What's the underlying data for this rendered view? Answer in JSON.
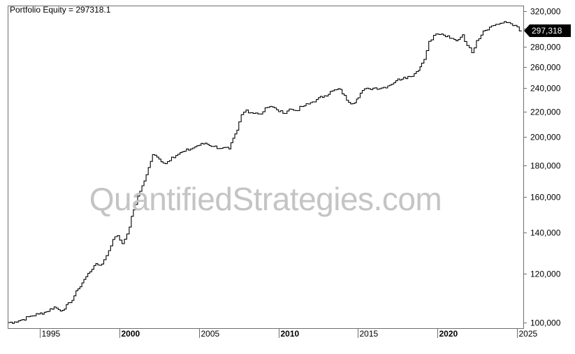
{
  "header": {
    "label": "Portfolio Equity = 297318.1"
  },
  "watermark": {
    "text": "QuantifiedStrategies.com"
  },
  "colors": {
    "line": "#000000",
    "frame": "#6e6e6e",
    "badge_bg": "#000000",
    "badge_text": "#ffffff",
    "watermark": "#c4c4c4"
  },
  "chart_data": {
    "type": "line",
    "title": "",
    "xlabel": "",
    "ylabel": "",
    "y_scale": "log",
    "ylim": [
      98000,
      326000
    ],
    "xlim": [
      1993.0,
      2025.4
    ],
    "grid": false,
    "legend": "none",
    "series": [
      {
        "name": "Portfolio Equity",
        "x": [
          1993.0,
          1993.5,
          1994.0,
          1994.5,
          1995.0,
          1995.5,
          1996.0,
          1996.4,
          1997.0,
          1997.5,
          1998.0,
          1998.5,
          1999.0,
          1999.3,
          1999.7,
          2000.0,
          2000.3,
          2000.6,
          2001.0,
          2001.4,
          2001.8,
          2002.2,
          2002.6,
          2003.0,
          2003.4,
          2003.8,
          2004.2,
          2004.6,
          2005.0,
          2005.5,
          2006.0,
          2006.5,
          2007.0,
          2007.5,
          2007.8,
          2008.1,
          2008.4,
          2008.7,
          2009.0,
          2009.3,
          2009.6,
          2010.0,
          2010.4,
          2010.8,
          2011.2,
          2011.6,
          2012.0,
          2012.5,
          2013.0,
          2013.5,
          2014.0,
          2014.4,
          2014.8,
          2015.0,
          2015.4,
          2015.8,
          2016.2,
          2016.6,
          2017.0,
          2017.5,
          2018.0,
          2018.4,
          2018.8,
          2019.0,
          2019.3,
          2019.6,
          2019.9,
          2020.1,
          2020.5,
          2020.9,
          2021.3,
          2021.7,
          2022.0,
          2022.3,
          2022.6,
          2023.0,
          2023.4,
          2023.8,
          2024.2,
          2024.6,
          2025.0,
          2025.3
        ],
        "y": [
          100000,
          100300,
          101200,
          102500,
          103300,
          104200,
          106100,
          104500,
          107800,
          113500,
          118800,
          123800,
          124500,
          128500,
          136500,
          138400,
          134400,
          139300,
          152400,
          163400,
          173800,
          187400,
          184300,
          181100,
          185600,
          187600,
          189800,
          191400,
          193700,
          195500,
          193200,
          191800,
          191400,
          205300,
          217500,
          221300,
          219100,
          218900,
          218000,
          223200,
          224300,
          221500,
          218600,
          222100,
          220800,
          224200,
          226300,
          230100,
          233400,
          237700,
          239000,
          229600,
          226700,
          230500,
          238100,
          239600,
          240400,
          240200,
          242200,
          246900,
          250200,
          250700,
          255400,
          260100,
          267300,
          286000,
          292500,
          293900,
          292700,
          289300,
          286600,
          293100,
          281600,
          274100,
          286800,
          297300,
          301600,
          304800,
          306200,
          306800,
          303600,
          297318
        ]
      }
    ],
    "y_ticks": [
      100000,
      120000,
      140000,
      160000,
      180000,
      200000,
      220000,
      240000,
      260000,
      280000,
      300000,
      320000
    ],
    "y_tick_labels": [
      "100,000",
      "120,000",
      "140,000",
      "160,000",
      "180,000",
      "200,000",
      "220,000",
      "240,000",
      "260,000",
      "280,000",
      "",
      "320,000"
    ],
    "x_ticks": [
      1995,
      2000,
      2005,
      2010,
      2015,
      2020,
      2025
    ],
    "x_tick_labels": [
      "1995",
      "2000",
      "2005",
      "2010",
      "2015",
      "2020",
      "2025"
    ],
    "x_tick_bold": [
      false,
      true,
      false,
      true,
      false,
      true,
      false
    ],
    "last_value_label": "297,318"
  }
}
